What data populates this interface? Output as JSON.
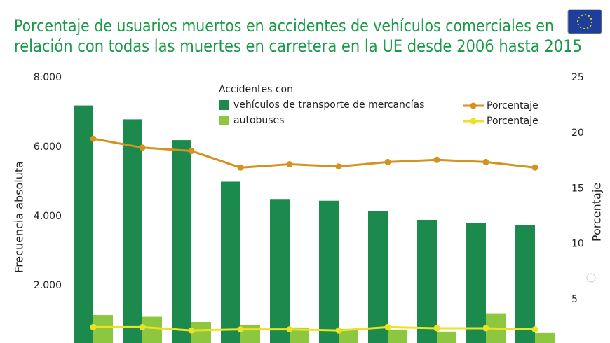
{
  "chart_data": {
    "type": "bar_line",
    "title": [
      "Porcentaje de usuarios muertos en accidentes de vehículos comerciales en",
      "relación con todas las muertes en carretera en la UE desde 2006 hasta 2015"
    ],
    "y_label": "Frecuencia absoluta",
    "y2_label": "Porcentaje",
    "legend_title": "Accidentes con",
    "categories": [
      null,
      null,
      null,
      null,
      null,
      null,
      null,
      null,
      null,
      null
    ],
    "series": [
      {
        "name": "vehículos de transporte de mercancías",
        "kind": "bar",
        "color": "#1b8a4c",
        "values": [
          7200,
          6800,
          6200,
          5000,
          4500,
          4450,
          4150,
          3900,
          3800,
          3750
        ]
      },
      {
        "name": "autobuses",
        "kind": "bar",
        "color": "#8dc63f",
        "values": [
          1150,
          1100,
          950,
          850,
          790,
          750,
          730,
          670,
          1200,
          630
        ]
      },
      {
        "name": "Porcentaje",
        "kind": "line",
        "axis": "y2",
        "color": "#d4921e",
        "values": [
          19.5,
          18.7,
          18.4,
          16.9,
          17.2,
          17.0,
          17.4,
          17.6,
          17.4,
          16.9
        ]
      },
      {
        "name": "Porcentaje",
        "kind": "line",
        "axis": "y2",
        "color": "#ece224",
        "values": [
          2.5,
          2.5,
          2.2,
          2.3,
          2.3,
          2.2,
          2.5,
          2.4,
          2.4,
          2.3
        ]
      }
    ],
    "ylim": [
      0,
      8000
    ],
    "yticks": [
      {
        "value": 2000,
        "label": "2.000"
      },
      {
        "value": 4000,
        "label": "4.000"
      },
      {
        "value": 6000,
        "label": "6.000"
      },
      {
        "value": 8000,
        "label": "8.000"
      }
    ],
    "y2lim": [
      0,
      25
    ],
    "y2ticks": [
      5,
      10,
      15,
      20,
      25
    ]
  }
}
